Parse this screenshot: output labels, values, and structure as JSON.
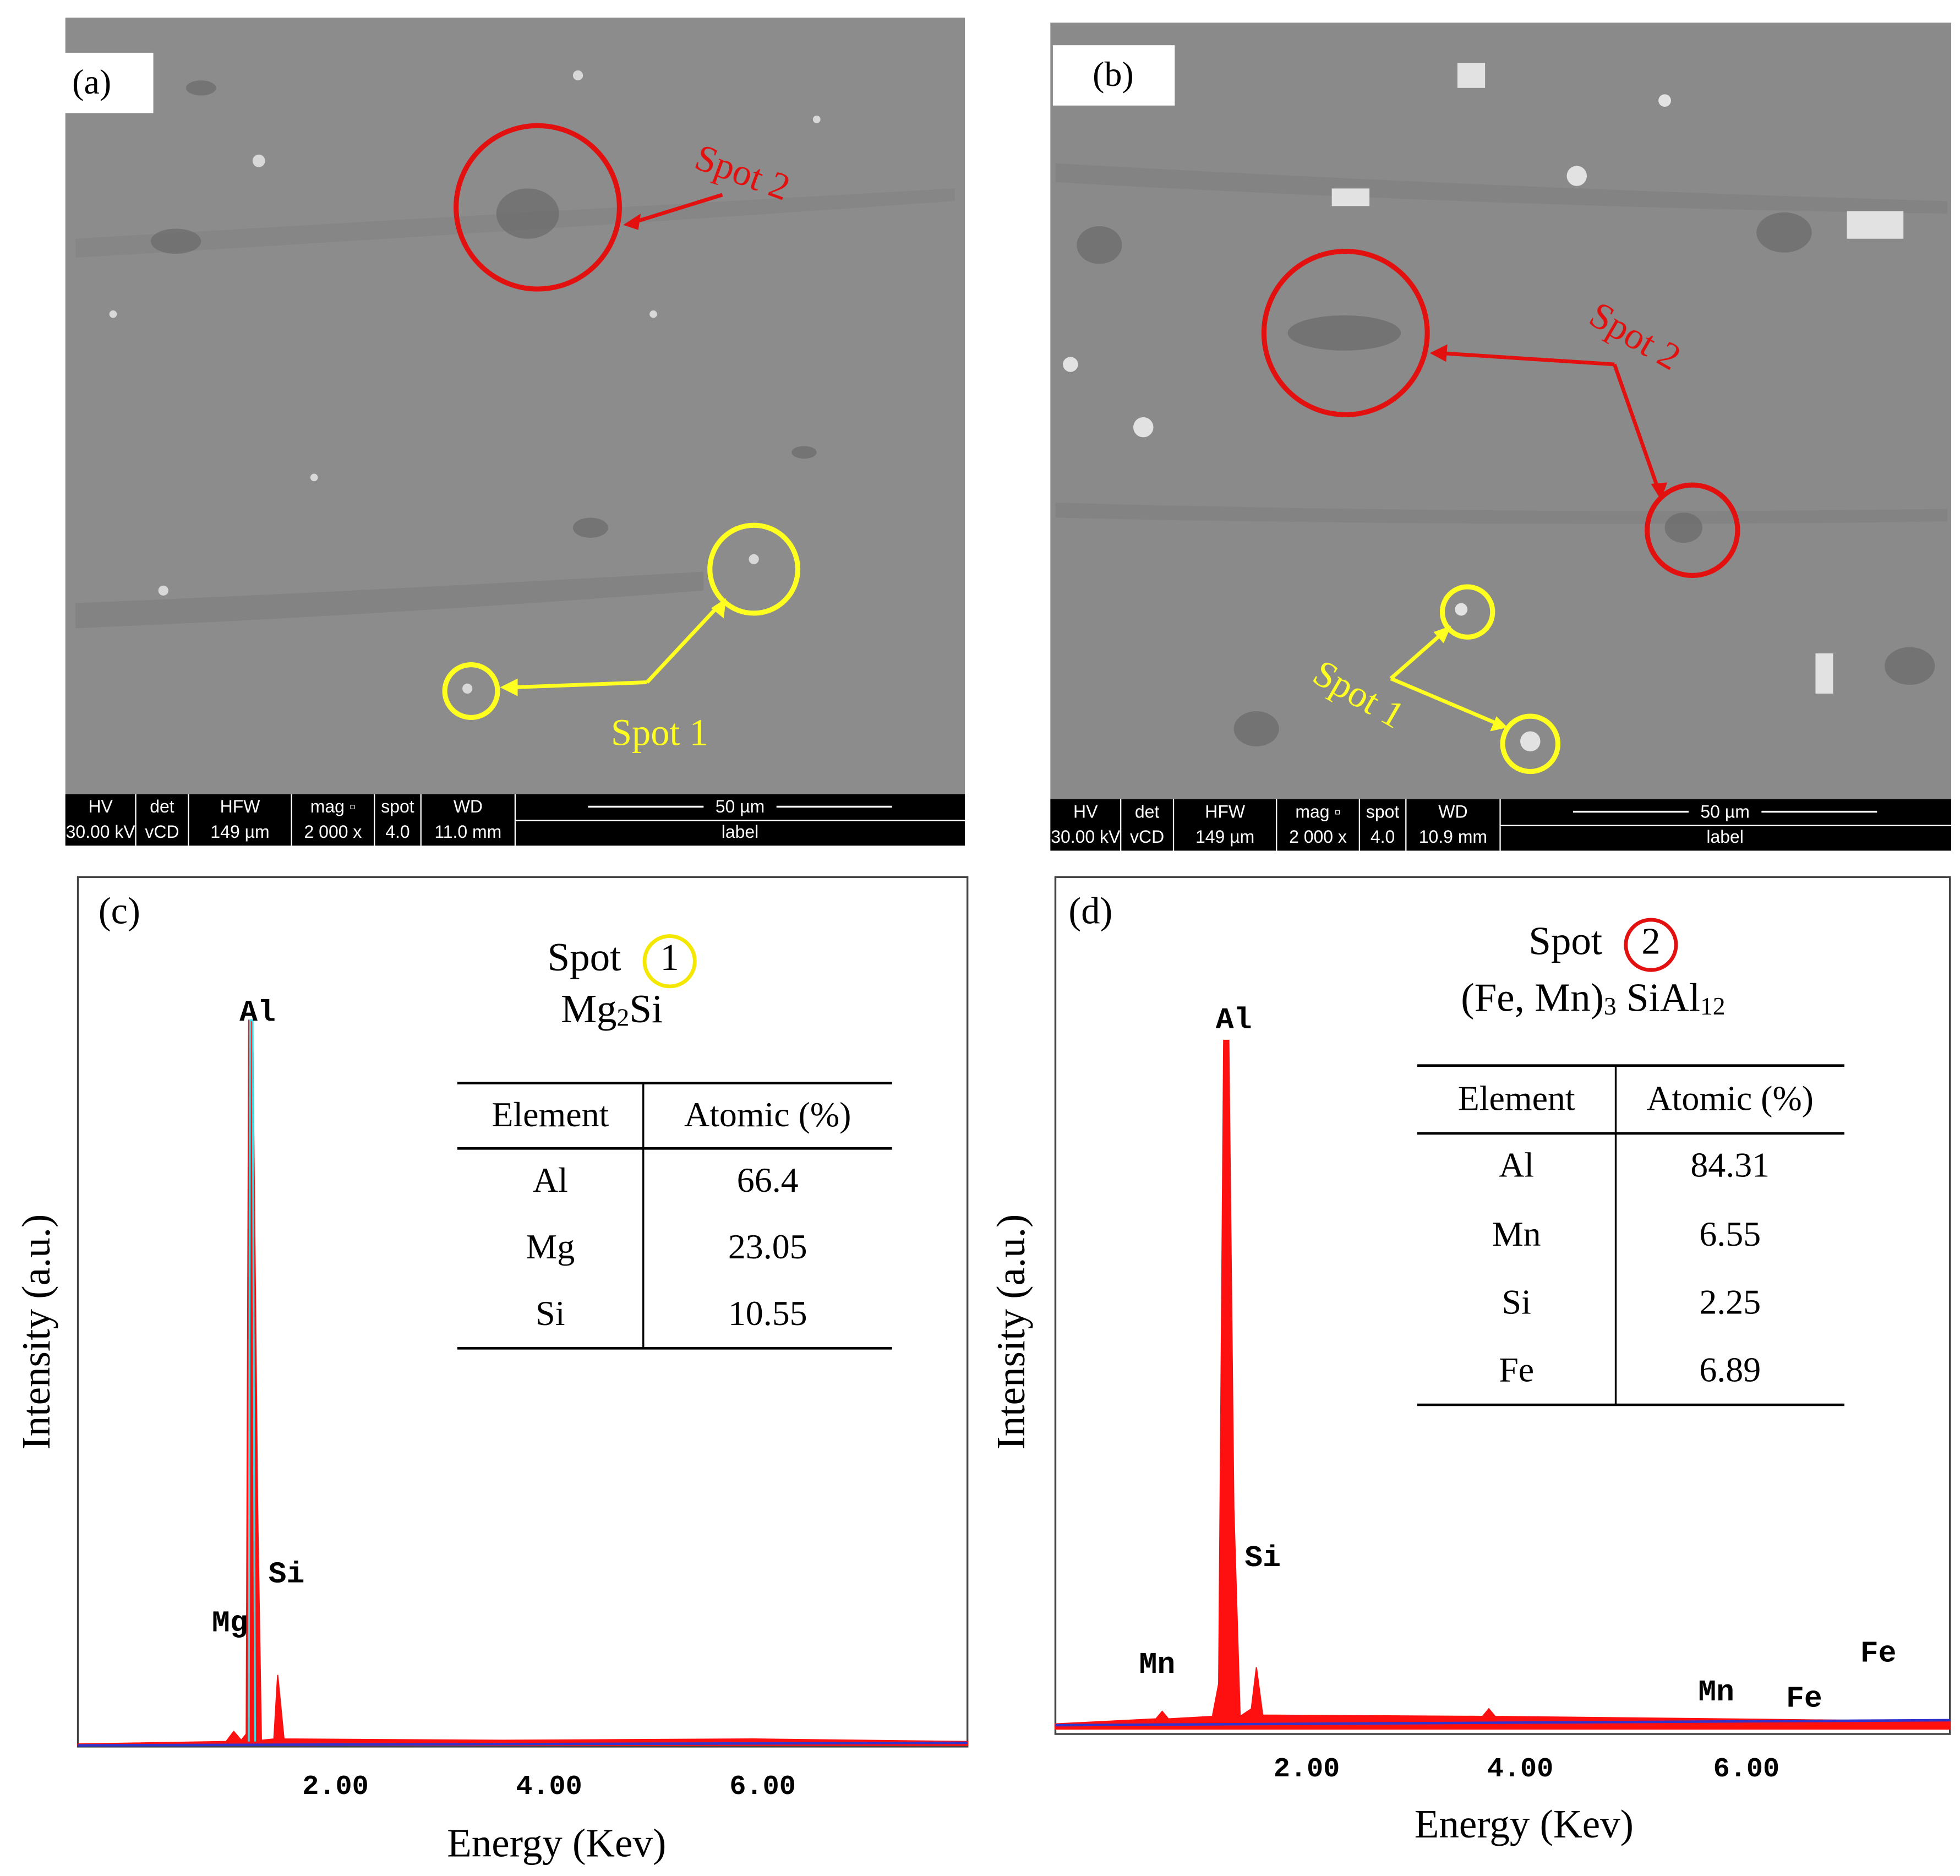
{
  "sem_panels": [
    {
      "label": "(a)",
      "spot2": "Spot 2",
      "spot1": "Spot 1",
      "databar": {
        "headers": [
          "HV",
          "det",
          "HFW",
          "mag ▫",
          "spot",
          "WD"
        ],
        "values": [
          "30.00 kV",
          "vCD",
          "149 µm",
          "2 000 x",
          "4.0",
          "11.0 mm"
        ],
        "scale": "50 µm",
        "scale_label": "label"
      }
    },
    {
      "label": "(b)",
      "spot2": "Spot 2",
      "spot1": "Spot 1",
      "databar": {
        "headers": [
          "HV",
          "det",
          "HFW",
          "mag ▫",
          "spot",
          "WD"
        ],
        "values": [
          "30.00 kV",
          "vCD",
          "149 µm",
          "2 000 x",
          "4.0",
          "10.9 mm"
        ],
        "scale": "50 µm",
        "scale_label": "label"
      }
    }
  ],
  "eds_panels": [
    {
      "label": "(c)",
      "spot": "Spot",
      "spot_number": "1",
      "phase": [
        {
          "text": "Mg"
        },
        {
          "text": "2",
          "sub": true
        },
        {
          "text": "Si"
        }
      ],
      "table": {
        "headers": [
          "Element",
          "Atomic  (%)"
        ],
        "rows": [
          [
            "Al",
            "66.4"
          ],
          [
            "Mg",
            "23.05"
          ],
          [
            "Si",
            "10.55"
          ]
        ]
      },
      "peaks": [
        "Al",
        "Si",
        "Mg"
      ],
      "xticks": [
        "2.00",
        "4.00",
        "6.00"
      ],
      "x_label": "Energy (Kev)",
      "y_label": "Intensity (a.u.)"
    },
    {
      "label": "(d)",
      "spot": "Spot",
      "spot_number": "2",
      "phase": [
        {
          "text": "(Fe, Mn)"
        },
        {
          "text": "3",
          "sub": true
        },
        {
          "text": " SiAl"
        },
        {
          "text": "12",
          "sub": true
        }
      ],
      "table": {
        "headers": [
          "Element",
          "Atomic  (%)"
        ],
        "rows": [
          [
            "Al",
            "84.31"
          ],
          [
            "Mn",
            "6.55"
          ],
          [
            "Si",
            "2.25"
          ],
          [
            "Fe",
            "6.89"
          ]
        ]
      },
      "peaks": [
        "Al",
        "Si",
        "Mn",
        "Mn",
        "Fe",
        "Fe"
      ],
      "xticks": [
        "2.00",
        "4.00",
        "6.00"
      ],
      "x_label": "Energy (Kev)",
      "y_label": "Intensity (a.u.)"
    }
  ]
}
